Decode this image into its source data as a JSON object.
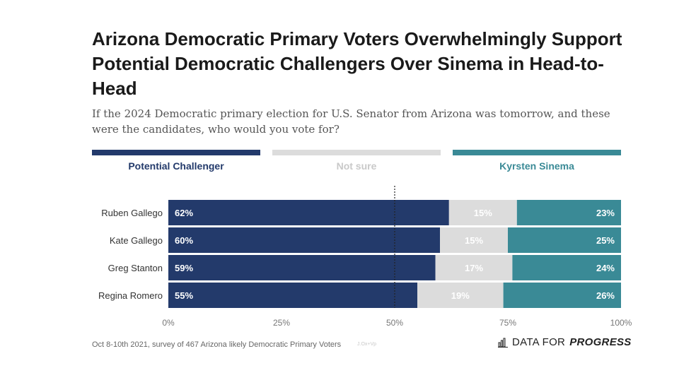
{
  "title": "Arizona Democratic Primary Voters Overwhelmingly Support Potential Democratic Challengers Over Sinema in Head-to-Head",
  "subtitle": "If the 2024 Democratic primary election for U.S. Senator from Arizona was tomorrow, and these were the candidates, who would you vote for?",
  "footer": {
    "note": "Oct 8-10th 2021, survey of 467 Arizona likely Democratic Primary Voters",
    "credit": "J.Ox+Vp",
    "brand_prefix": "DATA FOR",
    "brand_suffix": "PROGRESS"
  },
  "colors": {
    "challenger": "#233a6b",
    "not_sure": "#dcdcdc",
    "sinema": "#3a8a96",
    "not_sure_label": "#c9c9c9"
  },
  "chart_data": {
    "type": "bar",
    "orientation": "horizontal",
    "stacked": true,
    "categories": [
      "Ruben Gallego",
      "Kate Gallego",
      "Greg Stanton",
      "Regina Romero"
    ],
    "series": [
      {
        "name": "Potential Challenger",
        "values": [
          62,
          60,
          59,
          55
        ],
        "labels": [
          "62%",
          "60%",
          "59%",
          "55%"
        ]
      },
      {
        "name": "Not sure",
        "values": [
          15,
          15,
          17,
          19
        ],
        "labels": [
          "15%",
          "15%",
          "17%",
          "19%"
        ]
      },
      {
        "name": "Kyrsten Sinema",
        "values": [
          23,
          25,
          24,
          26
        ],
        "labels": [
          "23%",
          "25%",
          "24%",
          "26%"
        ]
      }
    ],
    "xlim": [
      0,
      100
    ],
    "xticks": [
      0,
      25,
      50,
      75,
      100
    ],
    "xtick_labels": [
      "0%",
      "25%",
      "50%",
      "75%",
      "100%"
    ],
    "reference_line": 50,
    "legend_position": "top",
    "grid": false
  }
}
